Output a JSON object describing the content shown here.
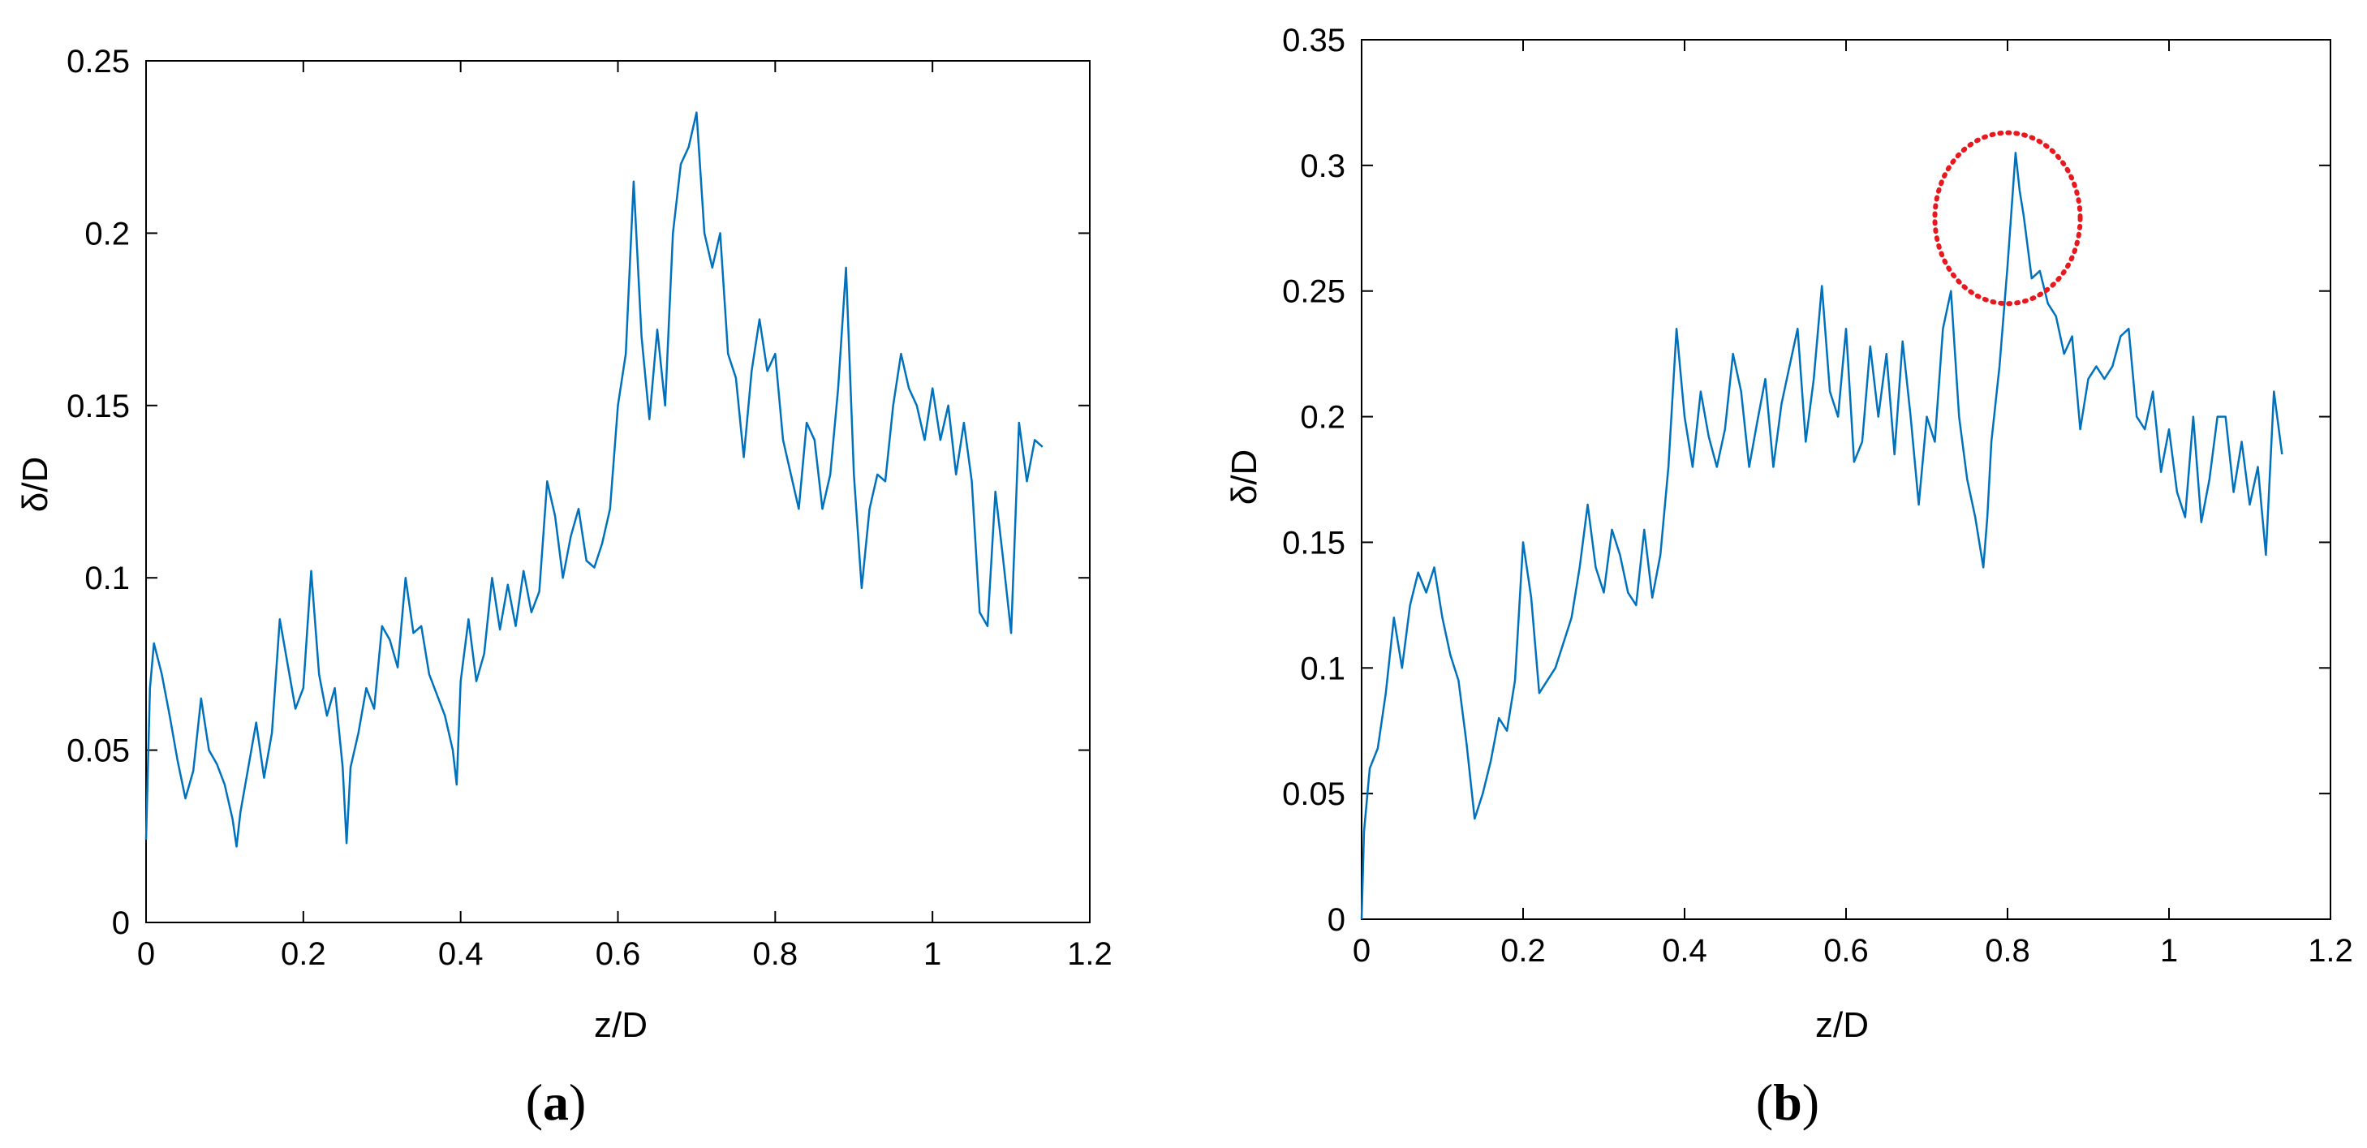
{
  "figure": {
    "panels": [
      {
        "label_open": "(",
        "label_letter": "a",
        "label_close": ")",
        "xlabel": "z/D",
        "ylabel": "δ/D"
      },
      {
        "label_open": "(",
        "label_letter": "b",
        "label_close": ")",
        "xlabel": "z/D",
        "ylabel": "δ/D"
      }
    ]
  },
  "colors": {
    "line": "#0072BD",
    "highlight_circle": "#E8191E",
    "axes": "#000000"
  },
  "chart_data": [
    {
      "type": "line",
      "title": "",
      "xlabel": "z/D",
      "ylabel": "δ/D",
      "xlim": [
        0,
        1.2
      ],
      "ylim": [
        0,
        0.25
      ],
      "xticks": [
        0,
        0.2,
        0.4,
        0.6,
        0.8,
        1,
        1.2
      ],
      "xtick_labels": [
        "0",
        "0.2",
        "0.4",
        "0.6",
        "0.8",
        "1",
        "1.2"
      ],
      "yticks": [
        0,
        0.05,
        0.1,
        0.15,
        0.2,
        0.25
      ],
      "ytick_labels": [
        "0",
        "0.05",
        "0.1",
        "0.15",
        "0.2",
        "0.25"
      ],
      "grid": false,
      "legend": "none",
      "series": [
        {
          "x": [
            0,
            0.005,
            0.01,
            0.02,
            0.03,
            0.04,
            0.05,
            0.06,
            0.07,
            0.08,
            0.09,
            0.1,
            0.11,
            0.115,
            0.12,
            0.13,
            0.14,
            0.15,
            0.16,
            0.17,
            0.18,
            0.19,
            0.2,
            0.21,
            0.22,
            0.23,
            0.24,
            0.25,
            0.255,
            0.26,
            0.27,
            0.28,
            0.29,
            0.3,
            0.31,
            0.32,
            0.33,
            0.34,
            0.35,
            0.36,
            0.37,
            0.38,
            0.39,
            0.395,
            0.4,
            0.41,
            0.42,
            0.43,
            0.44,
            0.45,
            0.46,
            0.47,
            0.48,
            0.49,
            0.5,
            0.51,
            0.52,
            0.53,
            0.54,
            0.55,
            0.56,
            0.57,
            0.58,
            0.59,
            0.6,
            0.61,
            0.62,
            0.63,
            0.64,
            0.65,
            0.66,
            0.67,
            0.68,
            0.69,
            0.7,
            0.71,
            0.72,
            0.73,
            0.74,
            0.75,
            0.76,
            0.77,
            0.78,
            0.79,
            0.8,
            0.81,
            0.82,
            0.83,
            0.84,
            0.85,
            0.86,
            0.87,
            0.88,
            0.89,
            0.9,
            0.91,
            0.92,
            0.93,
            0.94,
            0.95,
            0.96,
            0.97,
            0.98,
            0.99,
            1.0,
            1.01,
            1.02,
            1.03,
            1.04,
            1.05,
            1.06,
            1.07,
            1.08,
            1.09,
            1.1,
            1.11,
            1.12,
            1.13,
            1.14
          ],
          "y": [
            0.024,
            0.068,
            0.081,
            0.072,
            0.06,
            0.047,
            0.036,
            0.044,
            0.065,
            0.05,
            0.046,
            0.04,
            0.03,
            0.022,
            0.032,
            0.045,
            0.058,
            0.042,
            0.055,
            0.088,
            0.075,
            0.062,
            0.068,
            0.102,
            0.072,
            0.06,
            0.068,
            0.045,
            0.023,
            0.045,
            0.055,
            0.068,
            0.062,
            0.086,
            0.082,
            0.074,
            0.1,
            0.084,
            0.086,
            0.072,
            0.066,
            0.06,
            0.05,
            0.04,
            0.07,
            0.088,
            0.07,
            0.078,
            0.1,
            0.085,
            0.098,
            0.086,
            0.102,
            0.09,
            0.096,
            0.128,
            0.118,
            0.1,
            0.112,
            0.12,
            0.105,
            0.103,
            0.11,
            0.12,
            0.15,
            0.165,
            0.215,
            0.17,
            0.146,
            0.172,
            0.15,
            0.2,
            0.22,
            0.225,
            0.235,
            0.2,
            0.19,
            0.2,
            0.165,
            0.158,
            0.135,
            0.16,
            0.175,
            0.16,
            0.165,
            0.14,
            0.13,
            0.12,
            0.145,
            0.14,
            0.12,
            0.13,
            0.155,
            0.19,
            0.13,
            0.097,
            0.12,
            0.13,
            0.128,
            0.15,
            0.165,
            0.155,
            0.15,
            0.14,
            0.155,
            0.14,
            0.15,
            0.13,
            0.145,
            0.128,
            0.09,
            0.086,
            0.125,
            0.105,
            0.084,
            0.145,
            0.128,
            0.14,
            0.138
          ]
        }
      ]
    },
    {
      "type": "line",
      "title": "",
      "xlabel": "z/D",
      "ylabel": "δ/D",
      "xlim": [
        0,
        1.2
      ],
      "ylim": [
        0,
        0.35
      ],
      "xticks": [
        0,
        0.2,
        0.4,
        0.6,
        0.8,
        1,
        1.2
      ],
      "xtick_labels": [
        "0",
        "0.2",
        "0.4",
        "0.6",
        "0.8",
        "1",
        "1.2"
      ],
      "yticks": [
        0,
        0.05,
        0.1,
        0.15,
        0.2,
        0.25,
        0.3,
        0.35
      ],
      "ytick_labels": [
        "0",
        "0.05",
        "0.1",
        "0.15",
        "0.2",
        "0.25",
        "0.3",
        "0.35"
      ],
      "grid": false,
      "legend": "none",
      "annotations": [
        {
          "type": "dotted-circle",
          "center": [
            0.8,
            0.279
          ],
          "radius_x": 0.09,
          "radius_y": 0.034
        }
      ],
      "series": [
        {
          "x": [
            0,
            0.003,
            0.01,
            0.02,
            0.03,
            0.04,
            0.05,
            0.06,
            0.07,
            0.08,
            0.09,
            0.1,
            0.11,
            0.12,
            0.13,
            0.14,
            0.15,
            0.16,
            0.17,
            0.18,
            0.19,
            0.2,
            0.21,
            0.22,
            0.23,
            0.24,
            0.25,
            0.26,
            0.27,
            0.28,
            0.29,
            0.3,
            0.31,
            0.32,
            0.33,
            0.34,
            0.35,
            0.36,
            0.37,
            0.38,
            0.39,
            0.4,
            0.41,
            0.42,
            0.43,
            0.44,
            0.45,
            0.46,
            0.47,
            0.48,
            0.49,
            0.5,
            0.51,
            0.52,
            0.53,
            0.54,
            0.55,
            0.56,
            0.57,
            0.58,
            0.59,
            0.6,
            0.61,
            0.62,
            0.63,
            0.64,
            0.65,
            0.66,
            0.67,
            0.68,
            0.69,
            0.7,
            0.71,
            0.72,
            0.73,
            0.74,
            0.75,
            0.76,
            0.77,
            0.775,
            0.78,
            0.79,
            0.8,
            0.81,
            0.815,
            0.82,
            0.83,
            0.84,
            0.85,
            0.86,
            0.87,
            0.88,
            0.89,
            0.9,
            0.91,
            0.92,
            0.93,
            0.94,
            0.95,
            0.96,
            0.97,
            0.98,
            0.99,
            1.0,
            1.01,
            1.02,
            1.03,
            1.04,
            1.05,
            1.06,
            1.07,
            1.08,
            1.09,
            1.1,
            1.11,
            1.12,
            1.13,
            1.14
          ],
          "y": [
            0,
            0.035,
            0.06,
            0.068,
            0.09,
            0.12,
            0.1,
            0.125,
            0.138,
            0.13,
            0.14,
            0.12,
            0.105,
            0.095,
            0.07,
            0.04,
            0.05,
            0.063,
            0.08,
            0.075,
            0.095,
            0.15,
            0.128,
            0.09,
            0.095,
            0.1,
            0.11,
            0.12,
            0.14,
            0.165,
            0.14,
            0.13,
            0.155,
            0.145,
            0.13,
            0.125,
            0.155,
            0.128,
            0.145,
            0.18,
            0.235,
            0.2,
            0.18,
            0.21,
            0.192,
            0.18,
            0.195,
            0.225,
            0.21,
            0.18,
            0.198,
            0.215,
            0.18,
            0.205,
            0.22,
            0.235,
            0.19,
            0.215,
            0.252,
            0.21,
            0.2,
            0.235,
            0.182,
            0.19,
            0.228,
            0.2,
            0.225,
            0.185,
            0.23,
            0.2,
            0.165,
            0.2,
            0.19,
            0.235,
            0.25,
            0.2,
            0.175,
            0.16,
            0.14,
            0.16,
            0.19,
            0.22,
            0.26,
            0.305,
            0.29,
            0.28,
            0.255,
            0.258,
            0.245,
            0.24,
            0.225,
            0.232,
            0.195,
            0.215,
            0.22,
            0.215,
            0.22,
            0.232,
            0.235,
            0.2,
            0.195,
            0.21,
            0.178,
            0.195,
            0.17,
            0.16,
            0.2,
            0.158,
            0.175,
            0.2,
            0.2,
            0.17,
            0.19,
            0.165,
            0.18,
            0.145,
            0.21,
            0.185
          ]
        }
      ]
    }
  ]
}
